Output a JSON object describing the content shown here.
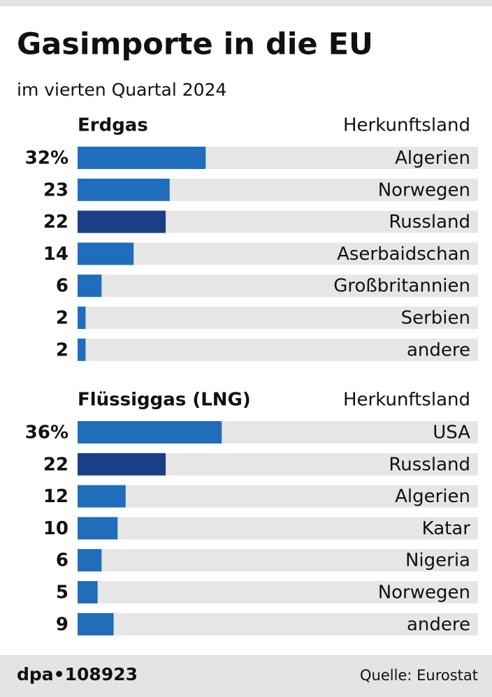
{
  "title": "Gasimporte in die EU",
  "subtitle": "im vierten Quartal 2024",
  "footer": {
    "credit": "dpa•108923",
    "source": "Quelle: Eurostat"
  },
  "chart_data": [
    {
      "type": "bar",
      "orientation": "horizontal",
      "title": "Erdgas",
      "category_label": "Herkunftsland",
      "categories": [
        "Algerien",
        "Norwegen",
        "Russland",
        "Aserbaidschan",
        "Großbritannien",
        "Serbien",
        "andere"
      ],
      "values": [
        32,
        23,
        22,
        14,
        6,
        2,
        2
      ],
      "value_labels": [
        "32%",
        "23",
        "22",
        "14",
        "6",
        "2",
        "2"
      ],
      "colors": [
        "#1f6dbb",
        "#1f6dbb",
        "#1b3f87",
        "#1f6dbb",
        "#1f6dbb",
        "#1f6dbb",
        "#1f6dbb"
      ],
      "xlim": [
        0,
        100
      ]
    },
    {
      "type": "bar",
      "orientation": "horizontal",
      "title": "Flüssiggas (LNG)",
      "category_label": "Herkunftsland",
      "categories": [
        "USA",
        "Russland",
        "Algerien",
        "Katar",
        "Nigeria",
        "Norwegen",
        "andere"
      ],
      "values": [
        36,
        22,
        12,
        10,
        6,
        5,
        9
      ],
      "value_labels": [
        "36%",
        "22",
        "12",
        "10",
        "6",
        "5",
        "9"
      ],
      "colors": [
        "#1f6dbb",
        "#1b3f87",
        "#1f6dbb",
        "#1f6dbb",
        "#1f6dbb",
        "#1f6dbb",
        "#1f6dbb"
      ],
      "xlim": [
        0,
        100
      ]
    }
  ]
}
